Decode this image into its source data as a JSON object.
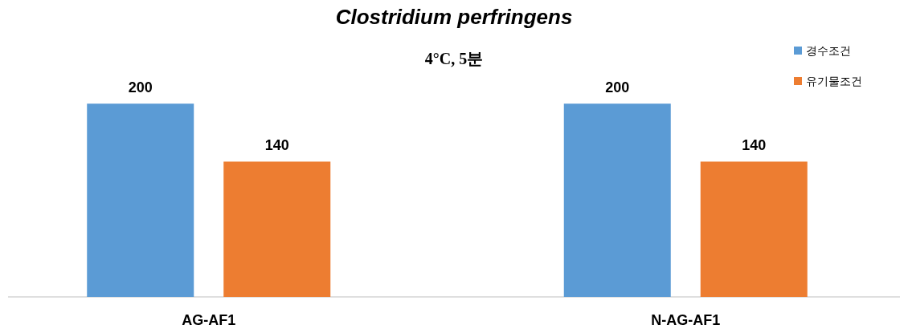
{
  "chart_data": {
    "type": "bar",
    "title": "Clostridium perfringens",
    "subtitle": "4°C, 5분",
    "categories": [
      "AG-AF1",
      "N-AG-AF1"
    ],
    "series": [
      {
        "name": "경수조건",
        "color": "#5b9bd5",
        "values": [
          200,
          200
        ]
      },
      {
        "name": "유기물조건",
        "color": "#ed7d31",
        "values": [
          140,
          140
        ]
      }
    ],
    "data_labels": true,
    "legend": "top right"
  }
}
